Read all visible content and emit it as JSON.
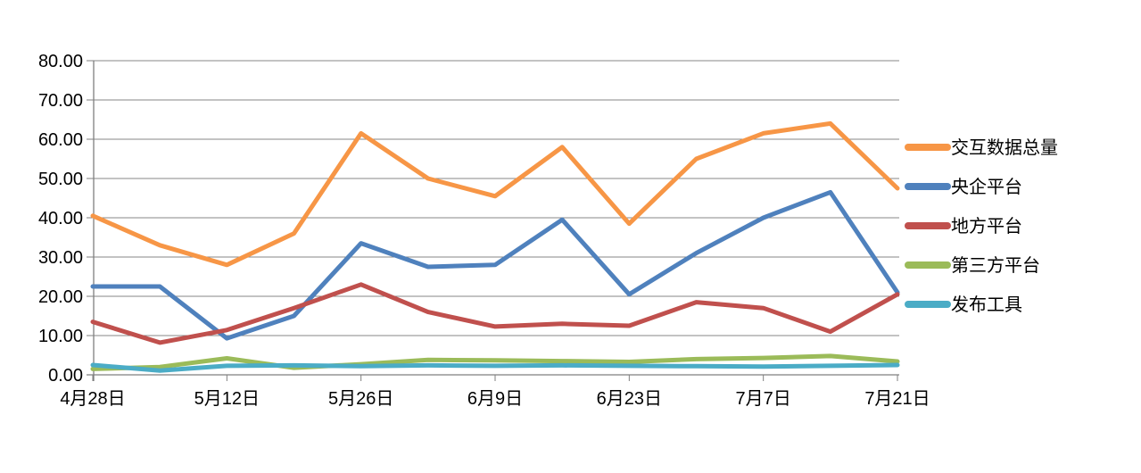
{
  "chart_data": {
    "type": "line",
    "title": "",
    "xlabel": "",
    "ylabel": "",
    "grid": true,
    "legend_position": "right",
    "ylim": [
      0,
      80
    ],
    "y_tick_labels": [
      "0.00",
      "10.00",
      "20.00",
      "30.00",
      "40.00",
      "50.00",
      "60.00",
      "70.00",
      "80.00"
    ],
    "x_tick_labels": [
      "4月28日",
      "5月12日",
      "5月26日",
      "6月9日",
      "6月23日",
      "7月7日",
      "7月21日"
    ],
    "x_ticks_every": 2,
    "n_points": 13,
    "series": [
      {
        "name": "交互数据总量",
        "color": "#F79646",
        "values": [
          40.5,
          33,
          28,
          36,
          61.5,
          50,
          45.5,
          58,
          38.5,
          55,
          61.5,
          64,
          47.5
        ]
      },
      {
        "name": "央企平台",
        "color": "#4F81BD",
        "values": [
          22.5,
          22.5,
          9.3,
          15,
          33.5,
          27.5,
          28,
          39.5,
          20.5,
          31,
          40,
          46.5,
          21
        ]
      },
      {
        "name": "地方平台",
        "color": "#C0504D",
        "values": [
          13.5,
          8.2,
          11.4,
          17,
          23,
          16,
          12.3,
          13,
          12.5,
          18.5,
          17,
          11,
          20.5
        ]
      },
      {
        "name": "第三方平台",
        "color": "#9BBB59",
        "values": [
          1.5,
          2,
          4.2,
          1.8,
          2.7,
          3.8,
          3.7,
          3.5,
          3.3,
          4,
          4.3,
          4.8,
          3.4
        ]
      },
      {
        "name": "发布工具",
        "color": "#4BACC6",
        "values": [
          2.5,
          1.1,
          2.3,
          2.4,
          2.2,
          2.4,
          2.3,
          2.4,
          2.3,
          2.2,
          2.1,
          2.3,
          2.5
        ]
      }
    ]
  },
  "colors": {
    "background": "#FFFFFF",
    "gridline": "#878787",
    "axis": "#7F7F7F",
    "tick": "#7F7F7F",
    "label_text": "#000000"
  }
}
